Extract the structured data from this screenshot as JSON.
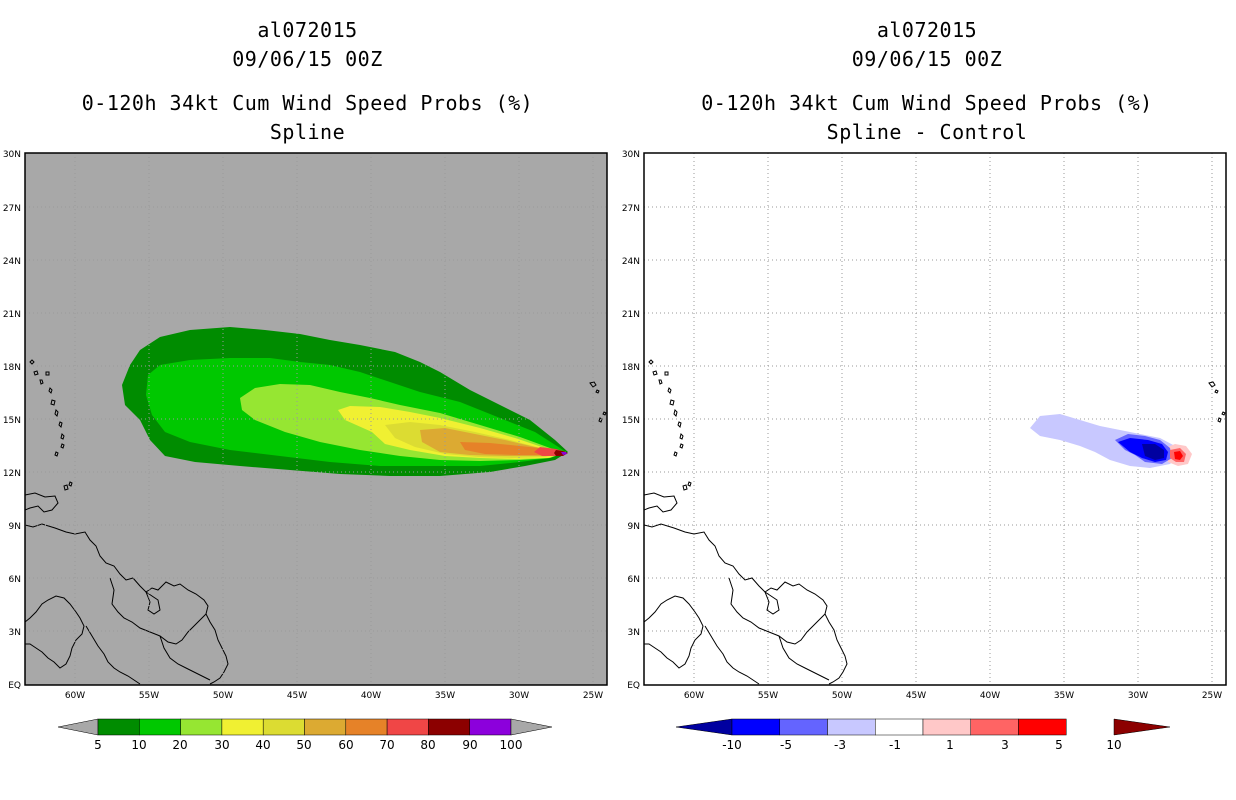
{
  "left_panel": {
    "storm_id": "al072015",
    "datetime": "09/06/15 00Z",
    "product": "0-120h 34kt Cum Wind Speed Probs (%)",
    "method": "Spline",
    "colorbar": {
      "labels": [
        "5",
        "10",
        "20",
        "30",
        "40",
        "50",
        "60",
        "70",
        "80",
        "90",
        "100"
      ],
      "colors": [
        "#008c00",
        "#00c800",
        "#96e632",
        "#f0f032",
        "#dcdc32",
        "#dcaa32",
        "#e68228",
        "#f04646",
        "#8c0000",
        "#8c00dc"
      ],
      "extend_color": "#a8a8a8"
    },
    "background_color": "#a8a8a8"
  },
  "right_panel": {
    "storm_id": "al072015",
    "datetime": "09/06/15 00Z",
    "product": "0-120h 34kt Cum Wind Speed Probs (%)",
    "method": "Spline - Control",
    "colorbar": {
      "labels": [
        "-10",
        "-5",
        "-3",
        "-1",
        "1",
        "3",
        "5",
        "10"
      ],
      "colors": [
        "#0000a0",
        "#0000ff",
        "#6464ff",
        "#c8c8ff",
        "#ffffff",
        "#ffc8c8",
        "#ff6464",
        "#ff0000",
        "#8c0000"
      ]
    },
    "background_color": "#ffffff"
  },
  "axes": {
    "lat_labels": [
      "EQ",
      "3N",
      "6N",
      "9N",
      "12N",
      "15N",
      "18N",
      "21N",
      "24N",
      "27N",
      "30N"
    ],
    "lon_labels": [
      "60W",
      "55W",
      "50W",
      "45W",
      "40W",
      "35W",
      "30W",
      "25W"
    ]
  }
}
